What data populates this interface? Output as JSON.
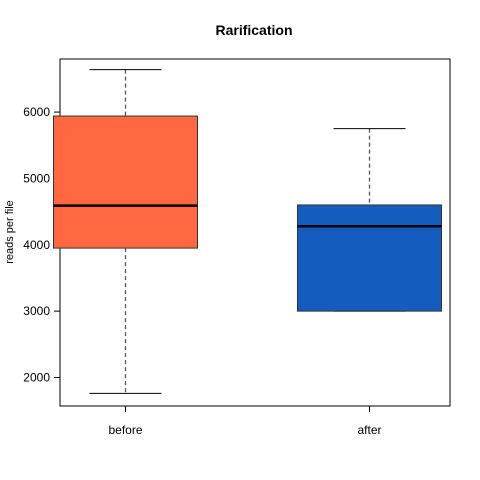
{
  "chart_data": {
    "type": "box",
    "title": "Rarification",
    "xlabel": "",
    "ylabel": "reads per file",
    "categories": [
      "before",
      "after"
    ],
    "ylim": [
      1570,
      6800
    ],
    "yticks": [
      2000,
      3000,
      4000,
      5000,
      6000
    ],
    "boxes": [
      {
        "name": "before",
        "min": 1760,
        "q1": 3950,
        "median": 4590,
        "q3": 5940,
        "max": 6640,
        "color": "#FF6840"
      },
      {
        "name": "after",
        "min": 3000,
        "q1": 3000,
        "median": 4280,
        "q3": 4600,
        "max": 5750,
        "color": "#145DBF"
      }
    ],
    "grid": false
  }
}
